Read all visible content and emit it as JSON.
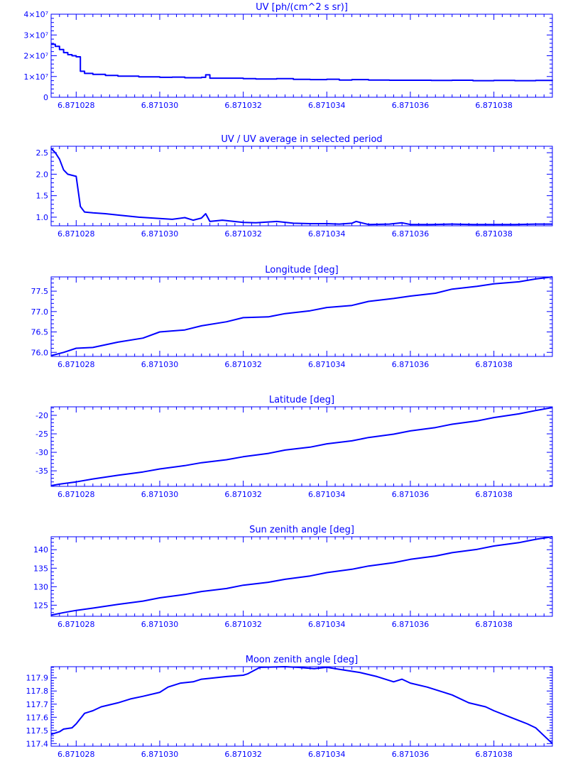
{
  "colors": {
    "line": "#0000ff",
    "background": "#ffffff"
  },
  "chart_data": [
    {
      "type": "line",
      "title": "UV [ph/(cm^2 s sr)]",
      "xlim": [
        6.8710274,
        6.8710394
      ],
      "ylim": [
        0,
        40000000
      ],
      "x_tick_labels": [
        "6.871028",
        "6.871030",
        "6.871032",
        "6.871034",
        "6.871036",
        "6.871038"
      ],
      "x_ticks": [
        6.871028,
        6.87103,
        6.871032,
        6.871034,
        6.871036,
        6.871038
      ],
      "y_ticks": [
        0,
        10000000,
        20000000,
        30000000,
        40000000
      ],
      "y_tick_labels": [
        "0",
        "1×10⁷",
        "2×10⁷",
        "3×10⁷",
        "4×10⁷"
      ],
      "step": true,
      "series": [
        {
          "x": [
            6.8710274,
            6.8710275,
            6.8710276,
            6.8710277,
            6.8710278,
            6.8710279,
            6.871028,
            6.8710281,
            6.8710282,
            6.8710284,
            6.8710287,
            6.871029,
            6.8710295,
            6.87103,
            6.8710303,
            6.8710306,
            6.871031,
            6.8710311,
            6.8710312,
            6.8710315,
            6.871032,
            6.8710323,
            6.8710328,
            6.8710332,
            6.8710336,
            6.871034,
            6.8710343,
            6.8710346,
            6.871035,
            6.8710355,
            6.871036,
            6.8710365,
            6.871037,
            6.8710375,
            6.871038,
            6.8710385,
            6.871039,
            6.8710394
          ],
          "y": [
            25500000,
            24500000,
            23000000,
            21500000,
            20500000,
            20000000,
            19500000,
            12500000,
            11500000,
            11000000,
            10500000,
            10200000,
            9800000,
            9600000,
            9700000,
            9400000,
            9600000,
            10800000,
            9200000,
            9200000,
            9000000,
            8800000,
            9000000,
            8600000,
            8500000,
            8700000,
            8300000,
            8500000,
            8300000,
            8200000,
            8200000,
            8100000,
            8200000,
            8000000,
            8100000,
            8000000,
            8100000,
            8000000
          ]
        }
      ]
    },
    {
      "type": "line",
      "title": "UV / UV average in selected period",
      "xlim": [
        6.8710274,
        6.8710394
      ],
      "ylim": [
        0.8,
        2.65
      ],
      "x_tick_labels": [
        "6.871028",
        "6.871030",
        "6.871032",
        "6.871034",
        "6.871036",
        "6.871038"
      ],
      "x_ticks": [
        6.871028,
        6.87103,
        6.871032,
        6.871034,
        6.871036,
        6.871038
      ],
      "y_ticks": [
        1.0,
        1.5,
        2.0,
        2.5
      ],
      "y_tick_labels": [
        "1.0",
        "1.5",
        "2.0",
        "2.5"
      ],
      "series": [
        {
          "x": [
            6.8710274,
            6.8710275,
            6.8710276,
            6.8710277,
            6.8710278,
            6.871028,
            6.8710281,
            6.8710282,
            6.8710284,
            6.8710287,
            6.871029,
            6.8710295,
            6.87103,
            6.8710303,
            6.8710306,
            6.8710308,
            6.871031,
            6.8710311,
            6.8710312,
            6.8710315,
            6.871032,
            6.8710323,
            6.8710328,
            6.8710332,
            6.8710336,
            6.871034,
            6.8710343,
            6.8710346,
            6.8710347,
            6.871035,
            6.8710355,
            6.8710358,
            6.871036,
            6.8710365,
            6.871037,
            6.8710375,
            6.871038,
            6.8710385,
            6.871039,
            6.8710394
          ],
          "y": [
            2.6,
            2.5,
            2.35,
            2.1,
            2.0,
            1.95,
            1.25,
            1.12,
            1.1,
            1.08,
            1.05,
            1.0,
            0.97,
            0.95,
            0.99,
            0.93,
            0.98,
            1.08,
            0.9,
            0.93,
            0.88,
            0.87,
            0.9,
            0.86,
            0.85,
            0.85,
            0.84,
            0.86,
            0.9,
            0.83,
            0.84,
            0.87,
            0.83,
            0.83,
            0.84,
            0.83,
            0.83,
            0.83,
            0.84,
            0.84
          ]
        }
      ]
    },
    {
      "type": "line",
      "title": "Longitude [deg]",
      "xlim": [
        6.8710274,
        6.8710394
      ],
      "ylim": [
        75.9,
        77.85
      ],
      "x_tick_labels": [
        "6.871028",
        "6.871030",
        "6.871032",
        "6.871034",
        "6.871036",
        "6.871038"
      ],
      "x_ticks": [
        6.871028,
        6.87103,
        6.871032,
        6.871034,
        6.871036,
        6.871038
      ],
      "y_ticks": [
        76.0,
        76.5,
        77.0,
        77.5
      ],
      "y_tick_labels": [
        "76.0",
        "76.5",
        "77.0",
        "77.5"
      ],
      "series": [
        {
          "x": [
            6.8710274,
            6.8710277,
            6.871028,
            6.8710284,
            6.871029,
            6.8710296,
            6.87103,
            6.8710306,
            6.871031,
            6.8710316,
            6.871032,
            6.8710326,
            6.871033,
            6.8710336,
            6.871034,
            6.8710346,
            6.871035,
            6.8710356,
            6.871036,
            6.8710366,
            6.871037,
            6.8710376,
            6.871038,
            6.8710386,
            6.871039,
            6.8710394
          ],
          "y": [
            75.92,
            76.0,
            76.1,
            76.12,
            76.25,
            76.35,
            76.5,
            76.55,
            76.65,
            76.75,
            76.85,
            76.87,
            76.95,
            77.02,
            77.1,
            77.15,
            77.25,
            77.32,
            77.38,
            77.45,
            77.55,
            77.62,
            77.68,
            77.73,
            77.8,
            77.85
          ]
        }
      ]
    },
    {
      "type": "line",
      "title": "Latitude [deg]",
      "xlim": [
        6.8710274,
        6.8710394
      ],
      "ylim": [
        -39.2,
        -17.7
      ],
      "x_tick_labels": [
        "6.871028",
        "6.871030",
        "6.871032",
        "6.871034",
        "6.871036",
        "6.871038"
      ],
      "x_ticks": [
        6.871028,
        6.87103,
        6.871032,
        6.871034,
        6.871036,
        6.871038
      ],
      "y_ticks": [
        -35,
        -30,
        -25,
        -20
      ],
      "y_tick_labels": [
        "-35",
        "-30",
        "-25",
        "-20"
      ],
      "series": [
        {
          "x": [
            6.8710274,
            6.8710276,
            6.871028,
            6.8710284,
            6.871029,
            6.8710296,
            6.87103,
            6.8710306,
            6.871031,
            6.8710316,
            6.871032,
            6.8710326,
            6.871033,
            6.8710336,
            6.871034,
            6.8710346,
            6.871035,
            6.8710356,
            6.871036,
            6.8710366,
            6.871037,
            6.8710376,
            6.871038,
            6.8710386,
            6.871039,
            6.8710394
          ],
          "y": [
            -39.0,
            -38.6,
            -38.0,
            -37.2,
            -36.2,
            -35.3,
            -34.5,
            -33.6,
            -32.8,
            -32.0,
            -31.2,
            -30.3,
            -29.4,
            -28.6,
            -27.7,
            -26.9,
            -26.0,
            -25.1,
            -24.2,
            -23.3,
            -22.4,
            -21.5,
            -20.6,
            -19.6,
            -18.7,
            -17.9
          ]
        }
      ]
    },
    {
      "type": "line",
      "title": "Sun zenith angle [deg]",
      "xlim": [
        6.8710274,
        6.8710394
      ],
      "ylim": [
        122.0,
        143.5
      ],
      "x_tick_labels": [
        "6.871028",
        "6.871030",
        "6.871032",
        "6.871034",
        "6.871036",
        "6.871038"
      ],
      "x_ticks": [
        6.871028,
        6.87103,
        6.871032,
        6.871034,
        6.871036,
        6.871038
      ],
      "y_ticks": [
        125,
        130,
        135,
        140
      ],
      "y_tick_labels": [
        "125",
        "130",
        "135",
        "140"
      ],
      "series": [
        {
          "x": [
            6.8710274,
            6.8710277,
            6.871028,
            6.8710284,
            6.871029,
            6.8710296,
            6.87103,
            6.8710306,
            6.871031,
            6.8710316,
            6.871032,
            6.8710326,
            6.871033,
            6.8710336,
            6.871034,
            6.8710346,
            6.871035,
            6.8710356,
            6.871036,
            6.8710366,
            6.871037,
            6.8710376,
            6.871038,
            6.8710386,
            6.871039,
            6.8710394
          ],
          "y": [
            122.3,
            123.0,
            123.6,
            124.2,
            125.2,
            126.1,
            127.0,
            127.9,
            128.7,
            129.5,
            130.4,
            131.2,
            132.0,
            132.9,
            133.8,
            134.7,
            135.6,
            136.5,
            137.4,
            138.3,
            139.2,
            140.1,
            141.0,
            141.9,
            142.8,
            143.5
          ]
        }
      ]
    },
    {
      "type": "line",
      "title": "Moon zenith angle [deg]",
      "xlim": [
        6.8710274,
        6.8710394
      ],
      "ylim": [
        117.38,
        117.985
      ],
      "x_tick_labels": [
        "6.871028",
        "6.871030",
        "6.871032",
        "6.871034",
        "6.871036",
        "6.871038"
      ],
      "x_ticks": [
        6.871028,
        6.87103,
        6.871032,
        6.871034,
        6.871036,
        6.871038
      ],
      "y_ticks": [
        117.4,
        117.5,
        117.6,
        117.7,
        117.8,
        117.9
      ],
      "y_tick_labels": [
        "117.4",
        "117.5",
        "117.6",
        "117.7",
        "117.8",
        "117.9"
      ],
      "series": [
        {
          "x": [
            6.8710274,
            6.8710276,
            6.8710277,
            6.8710279,
            6.871028,
            6.8710282,
            6.8710284,
            6.8710286,
            6.871029,
            6.8710293,
            6.8710296,
            6.87103,
            6.8710302,
            6.8710305,
            6.8710308,
            6.871031,
            6.8710313,
            6.8710316,
            6.871032,
            6.8710321,
            6.8710324,
            6.871033,
            6.8710333,
            6.8710337,
            6.871034,
            6.8710344,
            6.8710348,
            6.8710352,
            6.8710356,
            6.8710358,
            6.871036,
            6.8710364,
            6.8710368,
            6.871037,
            6.8710374,
            6.8710378,
            6.871038,
            6.8710384,
            6.8710388,
            6.871039,
            6.8710392,
            6.8710394
          ],
          "y": [
            117.47,
            117.49,
            117.51,
            117.52,
            117.55,
            117.63,
            117.65,
            117.68,
            117.71,
            117.74,
            117.76,
            117.79,
            117.83,
            117.86,
            117.87,
            117.89,
            117.9,
            117.91,
            117.92,
            117.93,
            117.98,
            117.985,
            117.98,
            117.97,
            117.98,
            117.96,
            117.94,
            117.91,
            117.87,
            117.89,
            117.86,
            117.83,
            117.79,
            117.77,
            117.71,
            117.68,
            117.65,
            117.6,
            117.55,
            117.52,
            117.46,
            117.4
          ]
        }
      ]
    }
  ]
}
